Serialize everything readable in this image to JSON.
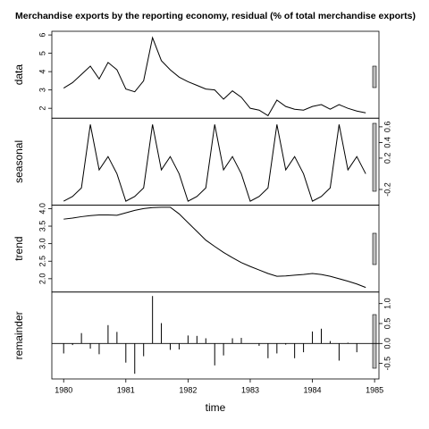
{
  "chart_data": {
    "type": "decomposition",
    "title": "Merchandise exports by the reporting economy, residual (% of total merchandise exports)",
    "xlabel": "time",
    "x": [
      1980,
      1980.143,
      1980.286,
      1980.429,
      1980.571,
      1980.714,
      1980.857,
      1981,
      1981.143,
      1981.286,
      1981.429,
      1981.571,
      1981.714,
      1981.857,
      1982,
      1982.143,
      1982.286,
      1982.429,
      1982.571,
      1982.714,
      1982.857,
      1983,
      1983.143,
      1983.286,
      1983.429,
      1983.571,
      1983.714,
      1983.857,
      1984,
      1984.143,
      1984.286,
      1984.429,
      1984.571,
      1984.714,
      1984.857
    ],
    "xlim": [
      1979.81,
      1985.07
    ],
    "xticks": [
      1980,
      1981,
      1982,
      1983,
      1984,
      1985
    ],
    "panels": [
      {
        "type": "line",
        "label": "data",
        "color": "#000000",
        "values": [
          3.1,
          3.4,
          3.85,
          4.3,
          3.6,
          4.5,
          4.1,
          3.05,
          2.9,
          3.5,
          5.85,
          4.6,
          4.1,
          3.7,
          3.45,
          3.25,
          3.05,
          3.0,
          2.5,
          2.95,
          2.6,
          2.0,
          1.9,
          1.6,
          2.45,
          2.1,
          1.95,
          1.9,
          2.1,
          2.2,
          1.95,
          2.2,
          2.0,
          1.85,
          1.75
        ],
        "ylim": [
          1.46,
          6.2
        ],
        "yticks": [
          2,
          3,
          4,
          5,
          6
        ]
      },
      {
        "type": "line",
        "label": "seasonal",
        "color": "#000000",
        "values": [
          -0.35,
          -0.29,
          -0.18,
          0.63,
          0.05,
          0.22,
          0.0,
          -0.35,
          -0.29,
          -0.18,
          0.63,
          0.05,
          0.22,
          0.0,
          -0.35,
          -0.29,
          -0.18,
          0.63,
          0.05,
          0.22,
          0.0,
          -0.35,
          -0.29,
          -0.18,
          0.63,
          0.05,
          0.22,
          0.0,
          -0.35,
          -0.29,
          -0.18,
          0.63,
          0.05,
          0.22,
          0.0
        ],
        "ylim": [
          -0.4,
          0.71
        ],
        "yticks": [
          -0.2,
          0.2,
          0.4,
          0.6
        ]
      },
      {
        "type": "line",
        "label": "trend",
        "color": "#000000",
        "values": [
          3.7,
          3.73,
          3.77,
          3.8,
          3.82,
          3.82,
          3.81,
          3.88,
          3.95,
          4.0,
          4.03,
          4.04,
          4.04,
          3.85,
          3.6,
          3.35,
          3.1,
          2.92,
          2.75,
          2.6,
          2.46,
          2.35,
          2.25,
          2.15,
          2.07,
          2.08,
          2.1,
          2.12,
          2.15,
          2.12,
          2.07,
          2.0,
          1.93,
          1.85,
          1.75
        ],
        "ylim": [
          1.62,
          4.1
        ],
        "yticks": [
          {
            "value": 2,
            "label": "2.0"
          },
          2.5,
          {
            "value": 3,
            "label": "3.0"
          },
          3.5,
          {
            "value": 4,
            "label": "4.0"
          }
        ]
      },
      {
        "type": "spike",
        "label": "remainder",
        "color": "#000000",
        "values": [
          -0.25,
          -0.04,
          0.26,
          -0.13,
          -0.27,
          0.46,
          0.29,
          -0.48,
          -0.76,
          -0.32,
          1.19,
          0.51,
          -0.16,
          -0.15,
          0.2,
          0.19,
          0.13,
          -0.55,
          -0.3,
          0.13,
          0.14,
          0.0,
          -0.06,
          -0.37,
          -0.25,
          -0.03,
          -0.37,
          -0.22,
          0.3,
          0.37,
          0.06,
          -0.43,
          0.02,
          -0.22,
          0.0
        ],
        "ylim": [
          -0.89,
          1.29
        ],
        "yticks": [
          {
            "value": -0.5,
            "label": "-0.5"
          },
          {
            "value": 0,
            "label": "0.0"
          },
          {
            "value": 0.5,
            "label": "0.5"
          },
          {
            "value": 1,
            "label": "1.0"
          }
        ]
      }
    ]
  }
}
